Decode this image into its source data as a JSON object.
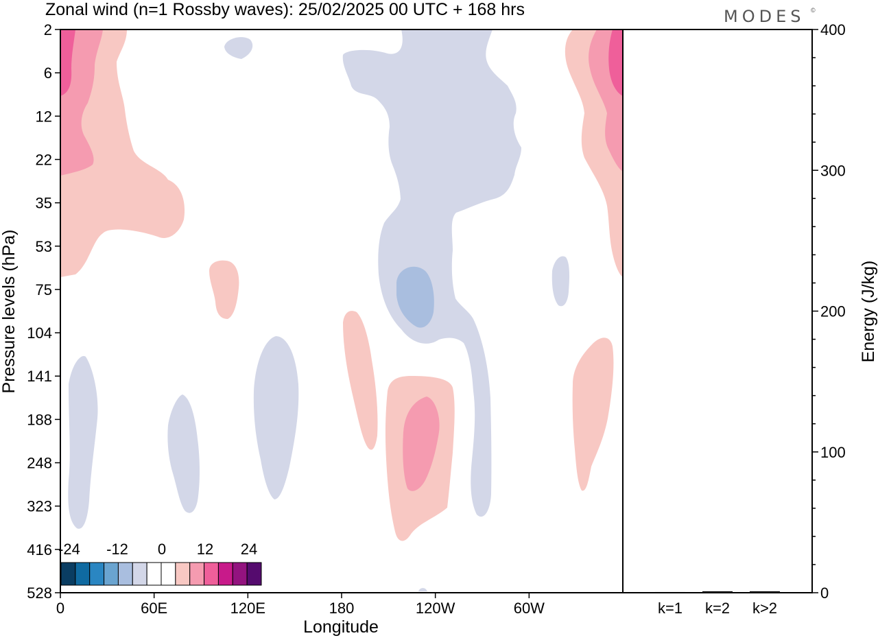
{
  "title": "Zonal wind (n=1 Rossby waves):  25/02/2025  00 UTC  + 168 hrs",
  "brand": "MODES",
  "brand_mark": "©",
  "chart_data": [
    {
      "type": "heatmap",
      "xlabel": "Longitude",
      "ylabel": "Pressure levels (hPa)",
      "x_ticks": [
        "0",
        "60E",
        "120E",
        "180",
        "120W",
        "60W"
      ],
      "x_tick_values": [
        0,
        60,
        120,
        180,
        240,
        300
      ],
      "xlim": [
        0,
        360
      ],
      "y_ticks": [
        "2",
        "6",
        "12",
        "22",
        "35",
        "53",
        "75",
        "104",
        "141",
        "188",
        "248",
        "323",
        "416",
        "528"
      ],
      "y_scale": "pressure levels (inverted)",
      "colorbar": {
        "tick_labels": [
          "-24",
          "-12",
          "0",
          "12",
          "24"
        ],
        "colors": [
          "#0a3d62",
          "#0f6aa1",
          "#2a86c2",
          "#6aa4d0",
          "#a9bedf",
          "#d3d7e8",
          "#ffffff",
          "#ffffff",
          "#f8c8c3",
          "#f59bb0",
          "#ef5f9a",
          "#c81a8a",
          "#93137f",
          "#550b6e"
        ]
      },
      "features": [
        {
          "lon_range": [
            0,
            80
          ],
          "levels": "2-75",
          "sign": "positive",
          "max": "12+"
        },
        {
          "lon_range": [
            322,
            360
          ],
          "levels": "2-75",
          "sign": "positive",
          "max": "12+"
        },
        {
          "lon_range": [
            180,
            295
          ],
          "levels": "2-323",
          "sign": "negative",
          "max": "-8"
        },
        {
          "lon_range": [
            206,
            238
          ],
          "levels": "141-416",
          "sign": "positive",
          "max": "8"
        },
        {
          "lon_range": [
            182,
            203
          ],
          "levels": "104-248",
          "sign": "positive",
          "max": "4"
        },
        {
          "lon_range": [
            326,
            355
          ],
          "levels": "104-323",
          "sign": "positive",
          "max": "4"
        },
        {
          "lon_range": [
            5,
            25
          ],
          "levels": "141-416",
          "sign": "negative",
          "max": "-4"
        },
        {
          "lon_range": [
            70,
            90
          ],
          "levels": "141-323",
          "sign": "negative",
          "max": "-4"
        },
        {
          "lon_range": [
            125,
            152
          ],
          "levels": "104-323",
          "sign": "negative",
          "max": "-4"
        },
        {
          "lon_range": [
            95,
            115
          ],
          "levels": "53-104",
          "sign": "positive",
          "max": "4"
        },
        {
          "lon_range": [
            315,
            325
          ],
          "levels": "53-104",
          "sign": "negative",
          "max": "-4"
        },
        {
          "lon_range": [
            105,
            125
          ],
          "levels": "2-6",
          "sign": "negative",
          "max": "-4"
        }
      ]
    },
    {
      "type": "bar",
      "categories": [
        "k=1",
        "k=2",
        "k>2"
      ],
      "values": [
        0.5,
        1,
        1
      ],
      "ylabel": "Energy (J/kg)",
      "ylim": [
        0,
        400
      ],
      "y_ticks": [
        "0",
        "100",
        "200",
        "300",
        "400"
      ],
      "color": "#000000"
    }
  ]
}
